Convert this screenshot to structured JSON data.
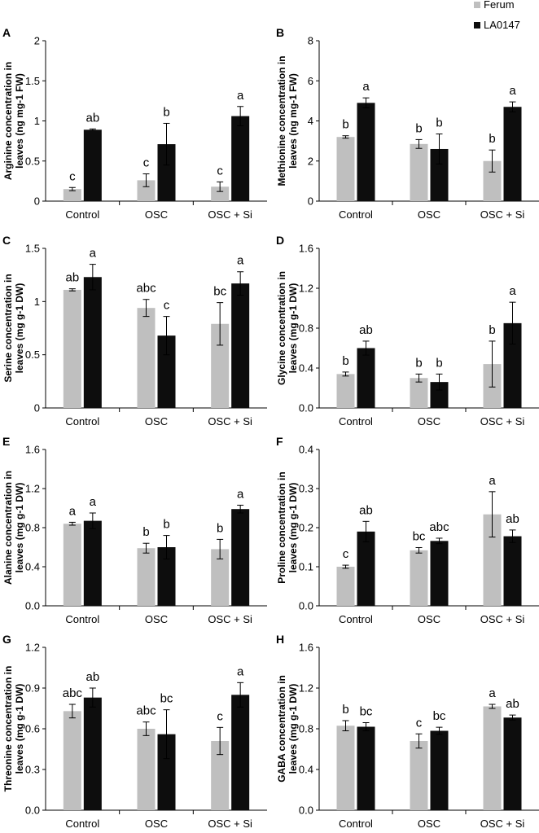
{
  "legend": [
    {
      "name": "Ferum",
      "color": "#bfbfbf"
    },
    {
      "name": "LA0147",
      "color": "#0d0d0d"
    }
  ],
  "chart_data": [
    {
      "panel": "A",
      "type": "bar",
      "categories": [
        "Control",
        "OSC",
        "OSC + Si"
      ],
      "ylabel": "Arginine concentration in leaves (ng mg-1 FW)",
      "ylim": [
        0,
        2
      ],
      "yticks": [
        "0",
        "0.5",
        "1",
        "1.5",
        "2"
      ],
      "series": [
        {
          "name": "Ferum",
          "values": [
            0.15,
            0.26,
            0.18
          ],
          "errors": [
            0.02,
            0.08,
            0.06
          ],
          "letters": [
            "c",
            "c",
            "c"
          ]
        },
        {
          "name": "LA0147",
          "values": [
            0.89,
            0.71,
            1.06
          ],
          "errors": [
            0.01,
            0.26,
            0.12
          ],
          "letters": [
            "ab",
            "b",
            "a"
          ]
        }
      ]
    },
    {
      "panel": "B",
      "type": "bar",
      "categories": [
        "Control",
        "OSC",
        "OSC + Si"
      ],
      "ylabel": "Methionine concentration in leaves (ng mg-1 FW)",
      "ylim": [
        0,
        8
      ],
      "yticks": [
        "0",
        "2",
        "4",
        "6",
        "8"
      ],
      "series": [
        {
          "name": "Ferum",
          "values": [
            3.2,
            2.85,
            2.0
          ],
          "errors": [
            0.06,
            0.22,
            0.55
          ],
          "letters": [
            "b",
            "b",
            "b"
          ]
        },
        {
          "name": "LA0147",
          "values": [
            4.9,
            2.6,
            4.7
          ],
          "errors": [
            0.25,
            0.75,
            0.25
          ],
          "letters": [
            "a",
            "b",
            "a"
          ]
        }
      ]
    },
    {
      "panel": "C",
      "type": "bar",
      "categories": [
        "Control",
        "OSC",
        "OSC + Si"
      ],
      "ylabel": "Serine concentration in leaves (mg g-1 DW)",
      "ylim": [
        0,
        1.5
      ],
      "yticks": [
        "0",
        "0.5",
        "1",
        "1.5"
      ],
      "series": [
        {
          "name": "Ferum",
          "values": [
            1.11,
            0.94,
            0.79
          ],
          "errors": [
            0.01,
            0.08,
            0.2
          ],
          "letters": [
            "ab",
            "abc",
            "bc"
          ]
        },
        {
          "name": "LA0147",
          "values": [
            1.23,
            0.68,
            1.17
          ],
          "errors": [
            0.12,
            0.18,
            0.11
          ],
          "letters": [
            "a",
            "c",
            "a"
          ]
        }
      ]
    },
    {
      "panel": "D",
      "type": "bar",
      "categories": [
        "Control",
        "OSC",
        "OSC + Si"
      ],
      "ylabel": "Glycine concentration in leaves (mg g-1 DW)",
      "ylim": [
        0,
        1.6
      ],
      "yticks": [
        "0.0",
        "0.4",
        "0.8",
        "1.2",
        "1.6"
      ],
      "series": [
        {
          "name": "Ferum",
          "values": [
            0.34,
            0.3,
            0.44
          ],
          "errors": [
            0.02,
            0.04,
            0.23
          ],
          "letters": [
            "b",
            "b",
            "b"
          ]
        },
        {
          "name": "LA0147",
          "values": [
            0.6,
            0.26,
            0.85
          ],
          "errors": [
            0.07,
            0.08,
            0.21
          ],
          "letters": [
            "ab",
            "b",
            "a"
          ]
        }
      ]
    },
    {
      "panel": "E",
      "type": "bar",
      "categories": [
        "Control",
        "OSC",
        "OSC + Si"
      ],
      "ylabel": "Alanine concentration in leaves (mg g-1 DW)",
      "ylim": [
        0,
        1.6
      ],
      "yticks": [
        "0.0",
        "0.4",
        "0.8",
        "1.2",
        "1.6"
      ],
      "series": [
        {
          "name": "Ferum",
          "values": [
            0.84,
            0.59,
            0.58
          ],
          "errors": [
            0.015,
            0.05,
            0.1
          ],
          "letters": [
            "a",
            "b",
            "b"
          ]
        },
        {
          "name": "LA0147",
          "values": [
            0.87,
            0.6,
            0.99
          ],
          "errors": [
            0.08,
            0.12,
            0.04
          ],
          "letters": [
            "a",
            "b",
            "a"
          ]
        }
      ]
    },
    {
      "panel": "F",
      "type": "bar",
      "categories": [
        "Control",
        "OSC",
        "OSC + Si"
      ],
      "ylabel": "Proline concentration in leaves (mg g-1 DW)",
      "ylim": [
        0,
        0.4
      ],
      "yticks": [
        "0.0",
        "0.1",
        "0.2",
        "0.3",
        "0.4"
      ],
      "series": [
        {
          "name": "Ferum",
          "values": [
            0.1,
            0.142,
            0.234
          ],
          "errors": [
            0.004,
            0.007,
            0.058
          ],
          "letters": [
            "c",
            "bc",
            "a"
          ]
        },
        {
          "name": "LA0147",
          "values": [
            0.19,
            0.166,
            0.178
          ],
          "errors": [
            0.026,
            0.007,
            0.016
          ],
          "letters": [
            "ab",
            "abc",
            "ab"
          ]
        }
      ]
    },
    {
      "panel": "G",
      "type": "bar",
      "categories": [
        "Control",
        "OSC",
        "OSC + Si"
      ],
      "ylabel": "Threonine concentration in leaves (mg g-1 DW)",
      "ylim": [
        0,
        1.2
      ],
      "yticks": [
        "0.0",
        "0.3",
        "0.6",
        "0.9",
        "1.2"
      ],
      "series": [
        {
          "name": "Ferum",
          "values": [
            0.73,
            0.6,
            0.51
          ],
          "errors": [
            0.05,
            0.05,
            0.1
          ],
          "letters": [
            "abc",
            "abc",
            "c"
          ]
        },
        {
          "name": "LA0147",
          "values": [
            0.83,
            0.56,
            0.85
          ],
          "errors": [
            0.07,
            0.18,
            0.09
          ],
          "letters": [
            "ab",
            "bc",
            "a"
          ]
        }
      ]
    },
    {
      "panel": "H",
      "type": "bar",
      "categories": [
        "Control",
        "OSC",
        "OSC + Si"
      ],
      "ylabel": "GABA concentration in leaves (mg g-1 DW)",
      "ylim": [
        0,
        1.6
      ],
      "yticks": [
        "0.0",
        "0.4",
        "0.8",
        "1.2",
        "1.6"
      ],
      "series": [
        {
          "name": "Ferum",
          "values": [
            0.83,
            0.68,
            1.02
          ],
          "errors": [
            0.05,
            0.07,
            0.02
          ],
          "letters": [
            "b",
            "c",
            "a"
          ]
        },
        {
          "name": "LA0147",
          "values": [
            0.82,
            0.78,
            0.91
          ],
          "errors": [
            0.04,
            0.035,
            0.025
          ],
          "letters": [
            "bc",
            "bc",
            "ab"
          ]
        }
      ]
    }
  ]
}
